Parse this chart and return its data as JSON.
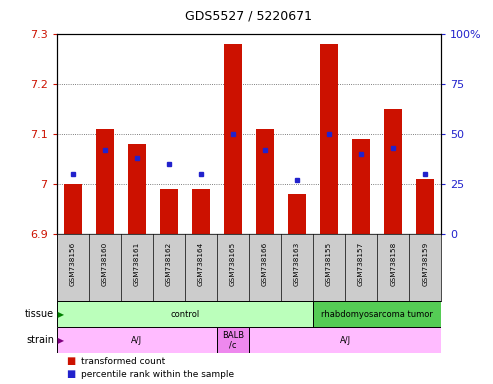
{
  "title": "GDS5527 / 5220671",
  "samples": [
    "GSM738156",
    "GSM738160",
    "GSM738161",
    "GSM738162",
    "GSM738164",
    "GSM738165",
    "GSM738166",
    "GSM738163",
    "GSM738155",
    "GSM738157",
    "GSM738158",
    "GSM738159"
  ],
  "red_values": [
    7.0,
    7.11,
    7.08,
    6.99,
    6.99,
    7.28,
    7.11,
    6.98,
    7.28,
    7.09,
    7.15,
    7.01
  ],
  "blue_values": [
    30,
    42,
    38,
    35,
    30,
    50,
    42,
    27,
    50,
    40,
    43,
    30
  ],
  "ymin": 6.9,
  "ymax": 7.3,
  "yticks": [
    6.9,
    7.0,
    7.1,
    7.2,
    7.3
  ],
  "ytick_labels": [
    "6.9",
    "7",
    "7.1",
    "7.2",
    "7.3"
  ],
  "right_yticks": [
    0,
    25,
    50,
    75,
    100
  ],
  "right_ytick_labels": [
    "0",
    "25",
    "50",
    "75",
    "100%"
  ],
  "bar_color": "#cc1100",
  "dot_color": "#2222cc",
  "bg_color": "#ffffff",
  "label_bg": "#cccccc",
  "tissue_groups": [
    {
      "label": "control",
      "start": 0,
      "end": 8,
      "color": "#bbffbb"
    },
    {
      "label": "rhabdomyosarcoma tumor",
      "start": 8,
      "end": 12,
      "color": "#55cc55"
    }
  ],
  "strain_groups": [
    {
      "label": "A/J",
      "start": 0,
      "end": 5,
      "color": "#ffbbff"
    },
    {
      "label": "BALB\n/c",
      "start": 5,
      "end": 6,
      "color": "#ee88ee"
    },
    {
      "label": "A/J",
      "start": 6,
      "end": 12,
      "color": "#ffbbff"
    }
  ],
  "tissue_label": "tissue",
  "strain_label": "strain",
  "legend_red": "transformed count",
  "legend_blue": "percentile rank within the sample",
  "base_value": 6.9,
  "grid_lines": [
    7.0,
    7.1,
    7.2
  ]
}
